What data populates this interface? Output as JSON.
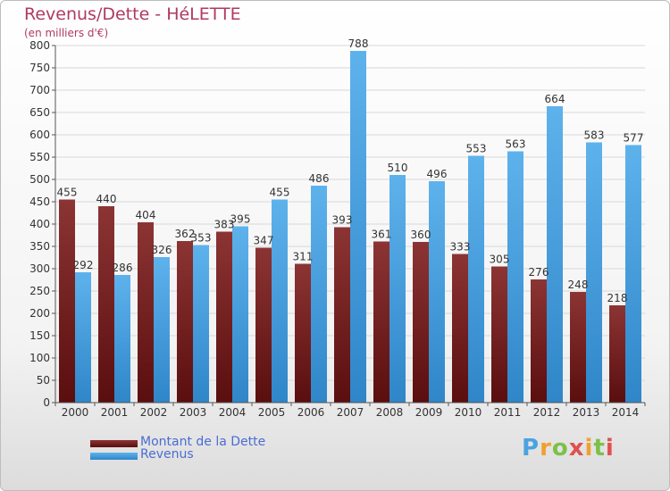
{
  "title": "Revenus/Dette - HéLETTE",
  "subtitle": "(en milliers d'€)",
  "logo": {
    "text": "Proxiti"
  },
  "legend": [
    {
      "label": "Montant de la Dette",
      "color": "#6e1e1e"
    },
    {
      "label": "Revenus",
      "color": "#4aa3e0"
    }
  ],
  "colors": {
    "dette": "#6e1e1e",
    "revenus": "#4aa3e0",
    "grid": "#d8d8d8",
    "label": "#333333"
  },
  "chart_data": {
    "type": "bar",
    "title": "Revenus/Dette - HéLETTE",
    "ylabel": "(en milliers d'€)",
    "xlabel": "",
    "ylim": [
      0,
      800
    ],
    "ytick_step": 50,
    "grid": true,
    "legend_position": "bottom-left",
    "categories": [
      "2000",
      "2001",
      "2002",
      "2003",
      "2004",
      "2005",
      "2006",
      "2007",
      "2008",
      "2009",
      "2010",
      "2011",
      "2012",
      "2013",
      "2014"
    ],
    "series": [
      {
        "name": "Montant de la Dette",
        "values": [
          455,
          440,
          404,
          362,
          383,
          347,
          311,
          393,
          361,
          360,
          333,
          305,
          276,
          248,
          218
        ]
      },
      {
        "name": "Revenus",
        "values": [
          292,
          286,
          326,
          353,
          395,
          455,
          486,
          788,
          510,
          496,
          553,
          563,
          664,
          583,
          577
        ]
      }
    ]
  }
}
